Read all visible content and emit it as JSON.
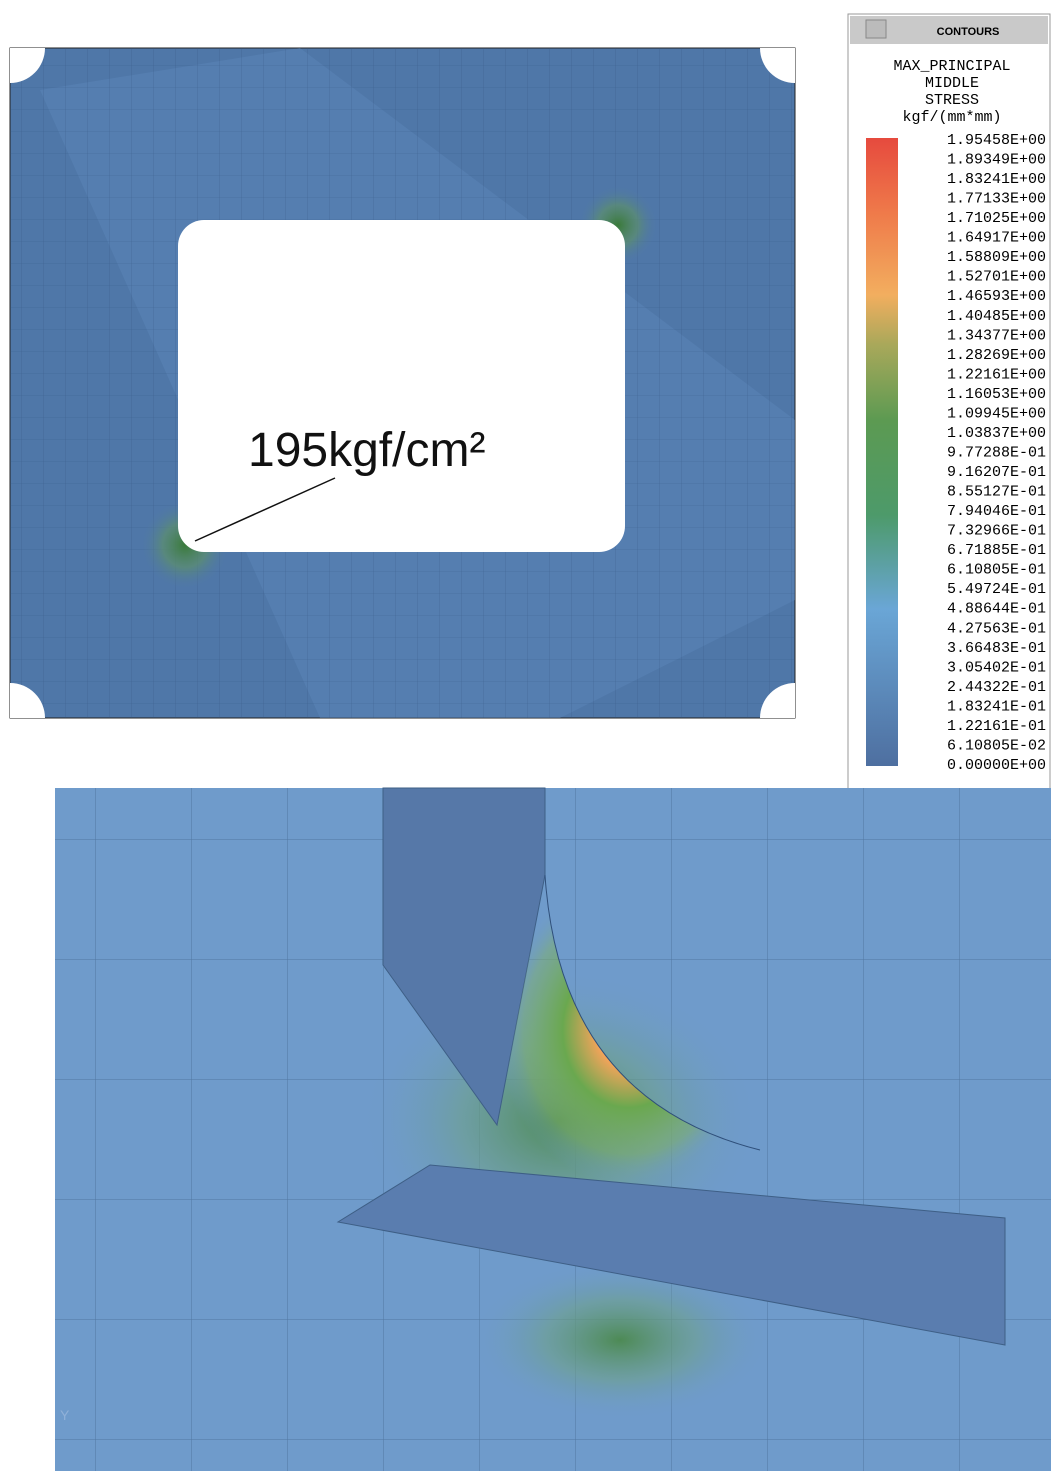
{
  "legend": {
    "window_title": "CONTOURS",
    "header": [
      "MAX_PRINCIPAL",
      "MIDDLE",
      "STRESS",
      "kgf/(mm*mm)"
    ],
    "levels": [
      "1.95458E+00",
      "1.89349E+00",
      "1.83241E+00",
      "1.77133E+00",
      "1.71025E+00",
      "1.64917E+00",
      "1.58809E+00",
      "1.52701E+00",
      "1.46593E+00",
      "1.40485E+00",
      "1.34377E+00",
      "1.28269E+00",
      "1.22161E+00",
      "1.16053E+00",
      "1.09945E+00",
      "1.03837E+00",
      "9.77288E-01",
      "9.16207E-01",
      "8.55127E-01",
      "7.94046E-01",
      "7.32966E-01",
      "6.71885E-01",
      "6.10805E-01",
      "5.49724E-01",
      "4.88644E-01",
      "4.27563E-01",
      "3.66483E-01",
      "3.05402E-01",
      "2.44322E-01",
      "1.83241E-01",
      "1.22161E-01",
      "6.10805E-02",
      "0.00000E+00"
    ]
  },
  "plate": {
    "annotation": "195kgf/cm²"
  },
  "detail": {
    "axis_label": "Y"
  }
}
